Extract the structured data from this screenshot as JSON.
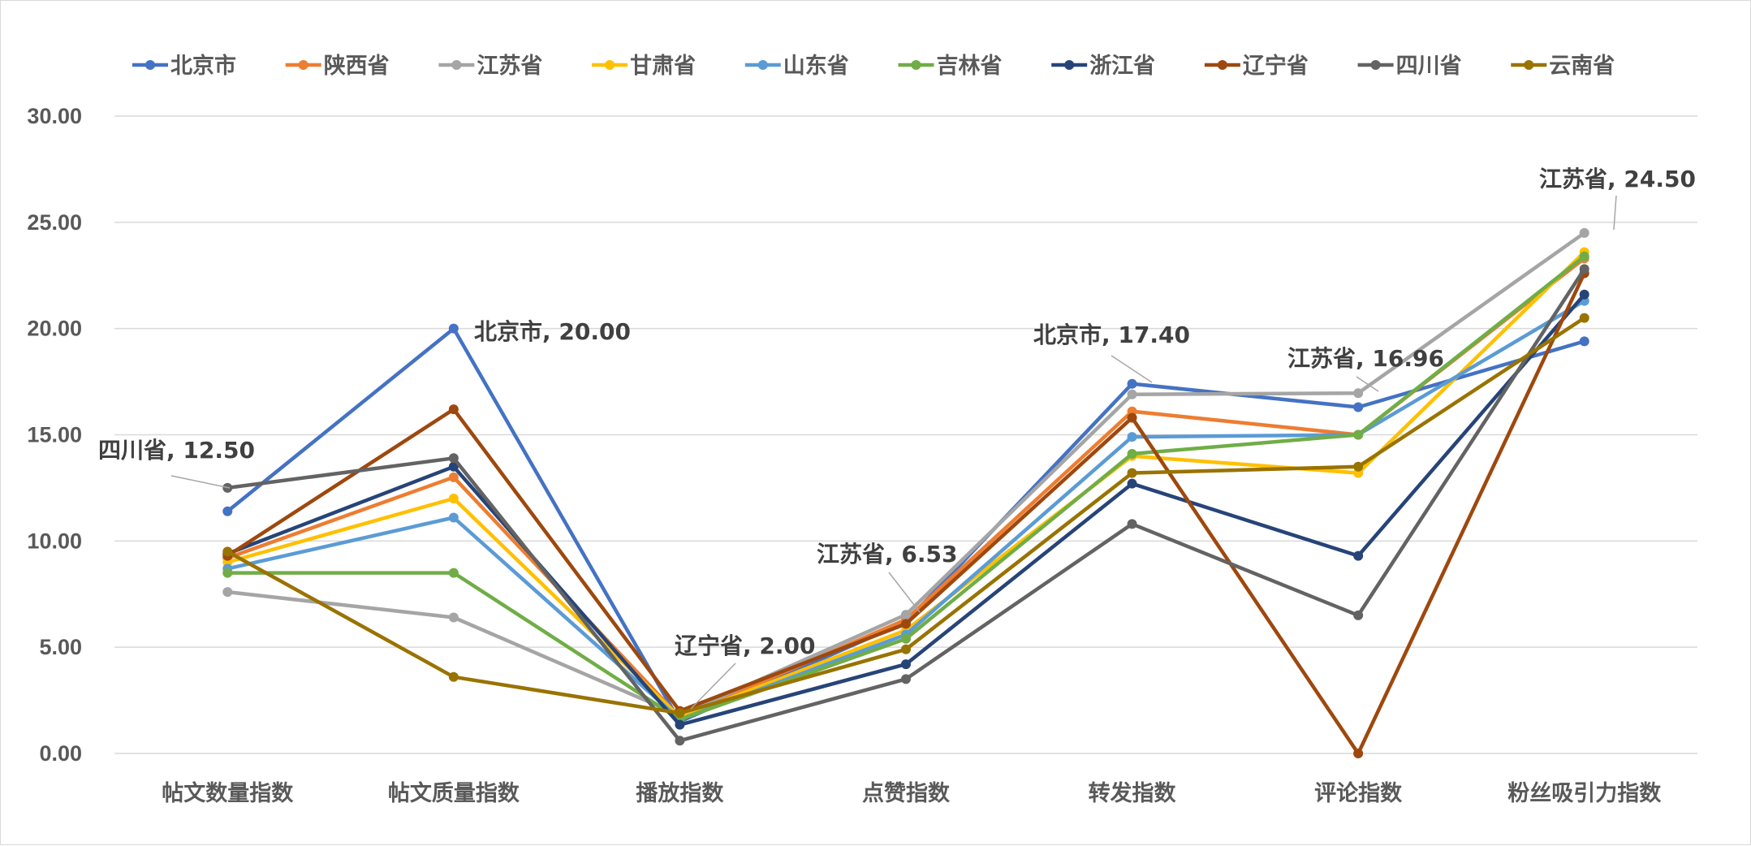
{
  "chart_data": {
    "type": "line",
    "title": "",
    "xlabel": "",
    "ylabel": "",
    "ylim": [
      0,
      30
    ],
    "y_ticks": [
      "0.00",
      "5.00",
      "10.00",
      "15.00",
      "20.00",
      "25.00",
      "30.00"
    ],
    "grid": true,
    "legend_position": "top",
    "categories": [
      "帖文数量指数",
      "帖文质量指数",
      "播放指数",
      "点赞指数",
      "转发指数",
      "评论指数",
      "粉丝吸引力指数"
    ],
    "series": [
      {
        "name": "北京市",
        "color": "#4472C4",
        "values": [
          11.4,
          20.0,
          1.5,
          6.2,
          17.4,
          16.3,
          19.4
        ]
      },
      {
        "name": "陕西省",
        "color": "#ED7D31",
        "values": [
          9.2,
          13.0,
          1.7,
          6.3,
          16.1,
          15.0,
          23.3
        ]
      },
      {
        "name": "江苏省",
        "color": "#A5A5A5",
        "values": [
          7.6,
          6.4,
          1.8,
          6.53,
          16.9,
          16.96,
          24.5
        ]
      },
      {
        "name": "甘肃省",
        "color": "#FFC000",
        "values": [
          9.0,
          12.0,
          1.7,
          5.8,
          14.0,
          13.2,
          23.6
        ]
      },
      {
        "name": "山东省",
        "color": "#5B9BD5",
        "values": [
          8.7,
          11.1,
          1.6,
          5.6,
          14.9,
          15.0,
          21.3
        ]
      },
      {
        "name": "吉林省",
        "color": "#70AD47",
        "values": [
          8.5,
          8.5,
          1.6,
          5.4,
          14.1,
          15.0,
          23.4
        ]
      },
      {
        "name": "浙江省",
        "color": "#264478",
        "values": [
          9.4,
          13.5,
          1.35,
          4.2,
          12.7,
          9.3,
          21.6
        ]
      },
      {
        "name": "辽宁省",
        "color": "#9E480E",
        "values": [
          9.3,
          16.2,
          2.0,
          6.1,
          15.8,
          0.0,
          22.6
        ]
      },
      {
        "name": "四川省",
        "color": "#636363",
        "values": [
          12.5,
          13.9,
          0.6,
          3.5,
          10.8,
          6.5,
          22.8
        ]
      },
      {
        "name": "云南省",
        "color": "#997300",
        "values": [
          9.5,
          3.6,
          1.9,
          4.9,
          13.2,
          13.5,
          20.5
        ]
      }
    ],
    "annotations": [
      {
        "text": "四川省, 12.50",
        "series": 8,
        "index": 0
      },
      {
        "text": "北京市, 20.00",
        "series": 0,
        "index": 1
      },
      {
        "text": "辽宁省, 2.00",
        "series": 7,
        "index": 2
      },
      {
        "text": "江苏省, 6.53",
        "series": 2,
        "index": 3
      },
      {
        "text": "北京市, 17.40",
        "series": 0,
        "index": 4
      },
      {
        "text": "江苏省, 16.96",
        "series": 2,
        "index": 5
      },
      {
        "text": "江苏省, 24.50",
        "series": 2,
        "index": 6
      }
    ]
  }
}
